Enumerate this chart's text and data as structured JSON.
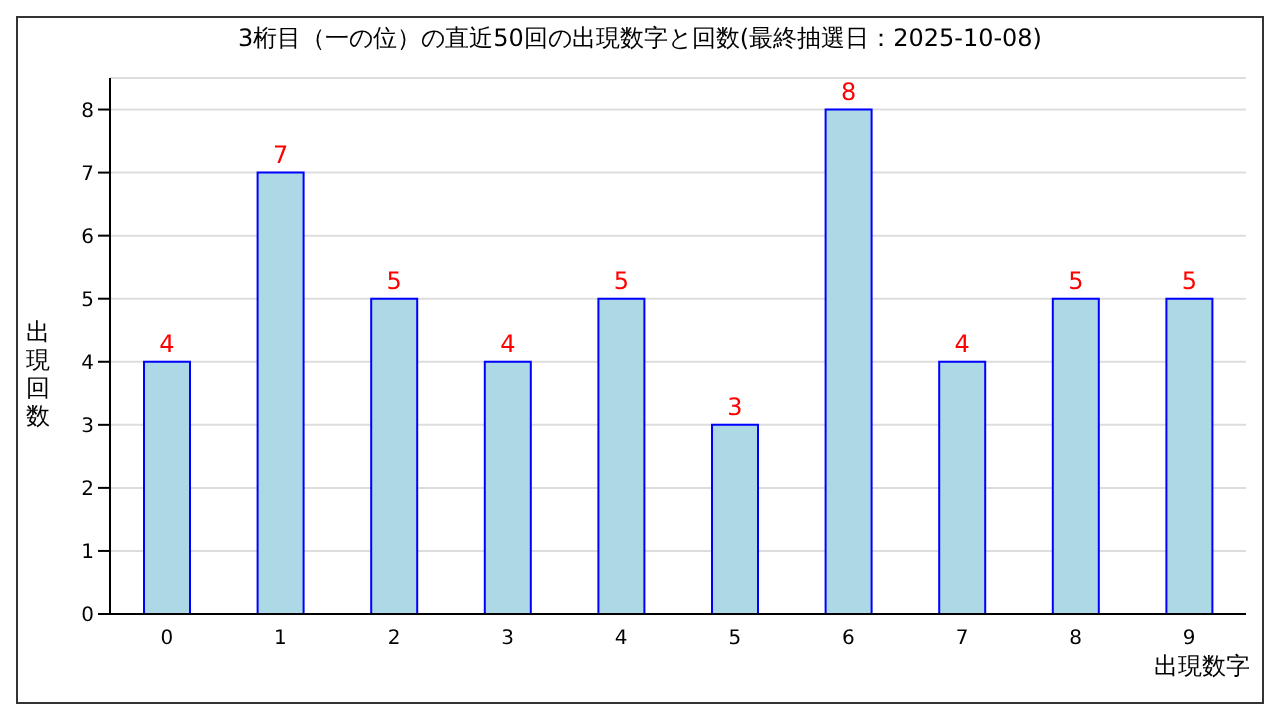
{
  "chart_data": {
    "type": "bar",
    "title": "3桁目（一の位）の直近50回の出現数字と回数(最終抽選日：2025-10-08)",
    "xlabel": "出現数字",
    "ylabel": "出現回数",
    "categories": [
      "0",
      "1",
      "2",
      "3",
      "4",
      "5",
      "6",
      "7",
      "8",
      "9"
    ],
    "values": [
      4,
      7,
      5,
      4,
      5,
      3,
      8,
      4,
      5,
      5
    ],
    "color": "#add8e6",
    "ylim": [
      0,
      8.5
    ],
    "yticks": [
      0,
      1,
      2,
      3,
      4,
      5,
      6,
      7,
      8
    ],
    "grid": "y",
    "data_labels": true
  }
}
